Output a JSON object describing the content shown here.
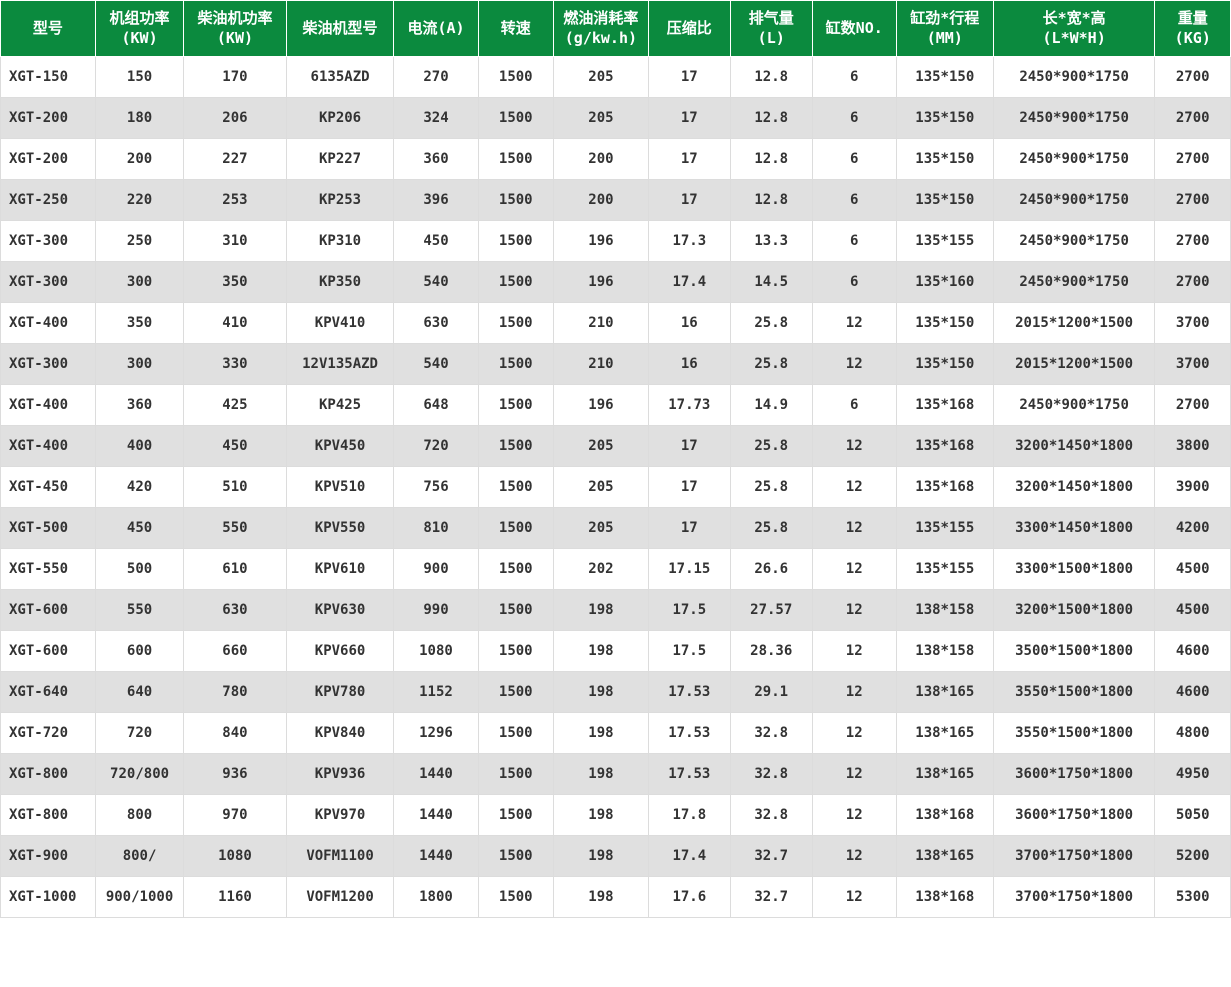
{
  "table": {
    "header_bg": "#0b8a3e",
    "header_fg": "#ffffff",
    "row_even_bg": "#ffffff",
    "row_odd_bg": "#e0e0e0",
    "border_color": "#dcdcdc",
    "cell_fontsize": 14,
    "header_fontsize": 15,
    "columns": [
      "型号",
      "机组功率\n(KW)",
      "柴油机功率\n(KW)",
      "柴油机型号",
      "电流(A)",
      "转速",
      "燃油消耗率\n(g/kw.h)",
      "压缩比",
      "排气量\n(L)",
      "缸数NO.",
      "缸劲*行程\n(MM)",
      "长*宽*高\n(L*W*H)",
      "重量\n(KG)"
    ],
    "rows": [
      [
        "XGT-150",
        "150",
        "170",
        "6135AZD",
        "270",
        "1500",
        "205",
        "17",
        "12.8",
        "6",
        "135*150",
        "2450*900*1750",
        "2700"
      ],
      [
        "XGT-200",
        "180",
        "206",
        "KP206",
        "324",
        "1500",
        "205",
        "17",
        "12.8",
        "6",
        "135*150",
        "2450*900*1750",
        "2700"
      ],
      [
        "XGT-200",
        "200",
        "227",
        "KP227",
        "360",
        "1500",
        "200",
        "17",
        "12.8",
        "6",
        "135*150",
        "2450*900*1750",
        "2700"
      ],
      [
        "XGT-250",
        "220",
        "253",
        "KP253",
        "396",
        "1500",
        "200",
        "17",
        "12.8",
        "6",
        "135*150",
        "2450*900*1750",
        "2700"
      ],
      [
        "XGT-300",
        "250",
        "310",
        "KP310",
        "450",
        "1500",
        "196",
        "17.3",
        "13.3",
        "6",
        "135*155",
        "2450*900*1750",
        "2700"
      ],
      [
        "XGT-300",
        "300",
        "350",
        "KP350",
        "540",
        "1500",
        "196",
        "17.4",
        "14.5",
        "6",
        "135*160",
        "2450*900*1750",
        "2700"
      ],
      [
        "XGT-400",
        "350",
        "410",
        "KPV410",
        "630",
        "1500",
        "210",
        "16",
        "25.8",
        "12",
        "135*150",
        "2015*1200*1500",
        "3700"
      ],
      [
        "XGT-300",
        "300",
        "330",
        "12V135AZD",
        "540",
        "1500",
        "210",
        "16",
        "25.8",
        "12",
        "135*150",
        "2015*1200*1500",
        "3700"
      ],
      [
        "XGT-400",
        "360",
        "425",
        "KP425",
        "648",
        "1500",
        "196",
        "17.73",
        "14.9",
        "6",
        "135*168",
        "2450*900*1750",
        "2700"
      ],
      [
        "XGT-400",
        "400",
        "450",
        "KPV450",
        "720",
        "1500",
        "205",
        "17",
        "25.8",
        "12",
        "135*168",
        "3200*1450*1800",
        "3800"
      ],
      [
        "XGT-450",
        "420",
        "510",
        "KPV510",
        "756",
        "1500",
        "205",
        "17",
        "25.8",
        "12",
        "135*168",
        "3200*1450*1800",
        "3900"
      ],
      [
        "XGT-500",
        "450",
        "550",
        "KPV550",
        "810",
        "1500",
        "205",
        "17",
        "25.8",
        "12",
        "135*155",
        "3300*1450*1800",
        "4200"
      ],
      [
        "XGT-550",
        "500",
        "610",
        "KPV610",
        "900",
        "1500",
        "202",
        "17.15",
        "26.6",
        "12",
        "135*155",
        "3300*1500*1800",
        "4500"
      ],
      [
        "XGT-600",
        "550",
        "630",
        "KPV630",
        "990",
        "1500",
        "198",
        "17.5",
        "27.57",
        "12",
        "138*158",
        "3200*1500*1800",
        "4500"
      ],
      [
        "XGT-600",
        "600",
        "660",
        "KPV660",
        "1080",
        "1500",
        "198",
        "17.5",
        "28.36",
        "12",
        "138*158",
        "3500*1500*1800",
        "4600"
      ],
      [
        "XGT-640",
        "640",
        "780",
        "KPV780",
        "1152",
        "1500",
        "198",
        "17.53",
        "29.1",
        "12",
        "138*165",
        "3550*1500*1800",
        "4600"
      ],
      [
        "XGT-720",
        "720",
        "840",
        "KPV840",
        "1296",
        "1500",
        "198",
        "17.53",
        "32.8",
        "12",
        "138*165",
        "3550*1500*1800",
        "4800"
      ],
      [
        "XGT-800",
        "720/800",
        "936",
        "KPV936",
        "1440",
        "1500",
        "198",
        "17.53",
        "32.8",
        "12",
        "138*165",
        "3600*1750*1800",
        "4950"
      ],
      [
        "XGT-800",
        "800",
        "970",
        "KPV970",
        "1440",
        "1500",
        "198",
        "17.8",
        "32.8",
        "12",
        "138*168",
        "3600*1750*1800",
        "5050"
      ],
      [
        "XGT-900",
        "800/",
        "1080",
        "VOFM1100",
        "1440",
        "1500",
        "198",
        "17.4",
        "32.7",
        "12",
        "138*165",
        "3700*1750*1800",
        "5200"
      ],
      [
        "XGT-1000",
        "900/1000",
        "1160",
        "VOFM1200",
        "1800",
        "1500",
        "198",
        "17.6",
        "32.7",
        "12",
        "138*168",
        "3700*1750*1800",
        "5300"
      ]
    ]
  }
}
